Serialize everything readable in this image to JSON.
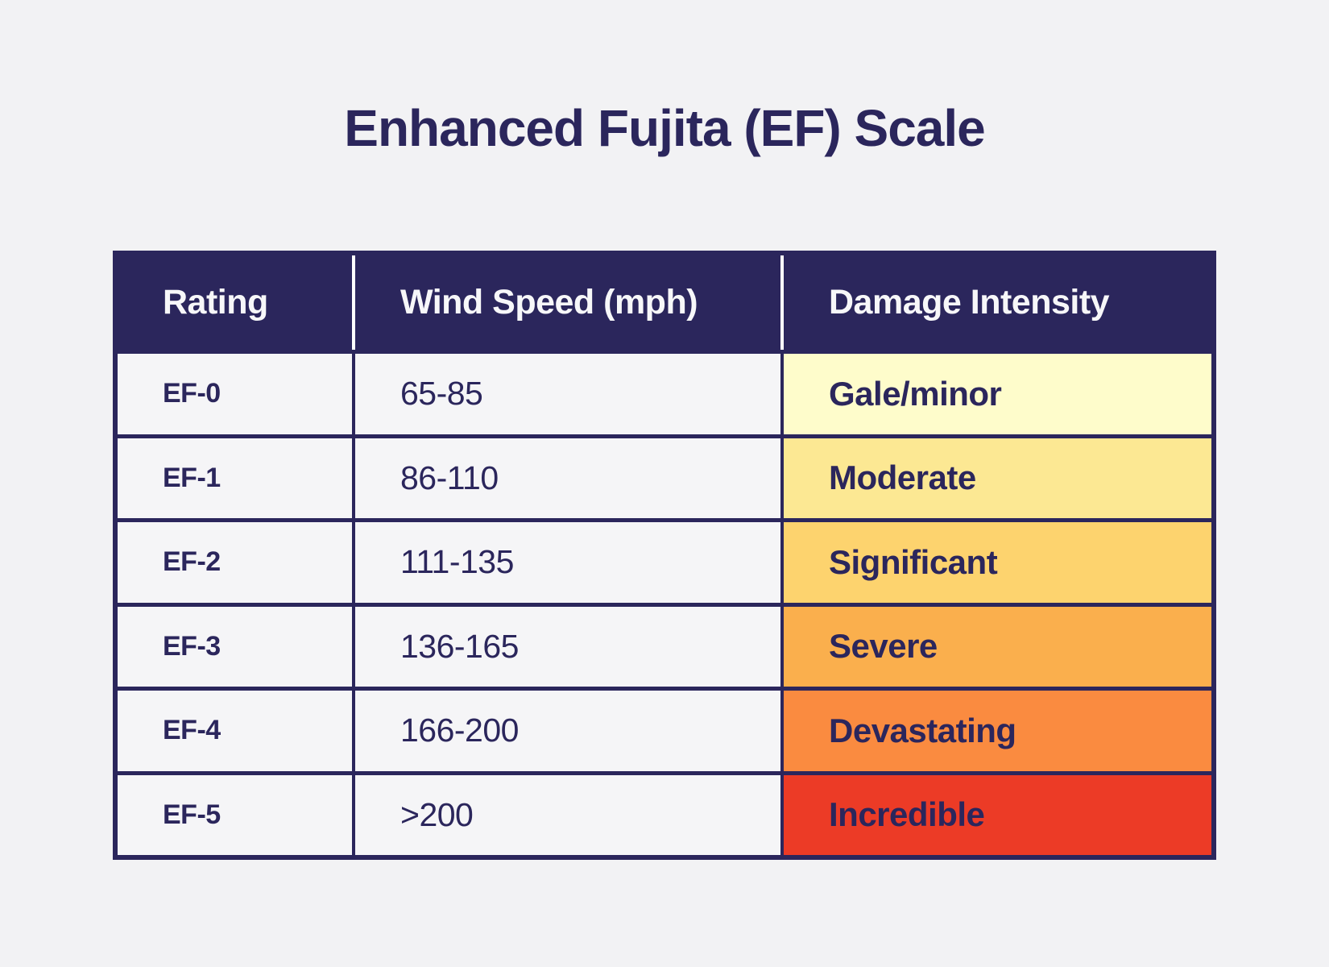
{
  "title": "Enhanced Fujita (EF) Scale",
  "colors": {
    "navy": "#2B265C",
    "page_background": "#F2F2F4",
    "light_cell_background": "#F5F5F7",
    "header_text": "#FFFFFF"
  },
  "chart_data": {
    "type": "table",
    "title": "Enhanced Fujita (EF) Scale",
    "columns": [
      "Rating",
      "Wind Speed (mph)",
      "Damage Intensity"
    ],
    "rows": [
      {
        "rating": "EF-0",
        "wind_speed": "65-85",
        "damage": "Gale/minor",
        "damage_color": "#FEFCCB"
      },
      {
        "rating": "EF-1",
        "wind_speed": "86-110",
        "damage": "Moderate",
        "damage_color": "#FCE893"
      },
      {
        "rating": "EF-2",
        "wind_speed": "111-135",
        "damage": "Significant",
        "damage_color": "#FDD36E"
      },
      {
        "rating": "EF-3",
        "wind_speed": "136-165",
        "damage": "Severe",
        "damage_color": "#FAAF4D"
      },
      {
        "rating": "EF-4",
        "wind_speed": "166-200",
        "damage": "Devastating",
        "damage_color": "#FA8B40"
      },
      {
        "rating": "EF-5",
        "wind_speed": ">200",
        "damage": "Incredible",
        "damage_color": "#EC3B26"
      }
    ],
    "layout": {
      "legend": "none",
      "grid": "table borders navy",
      "header_style": "navy background, white text, white column dividers"
    }
  }
}
